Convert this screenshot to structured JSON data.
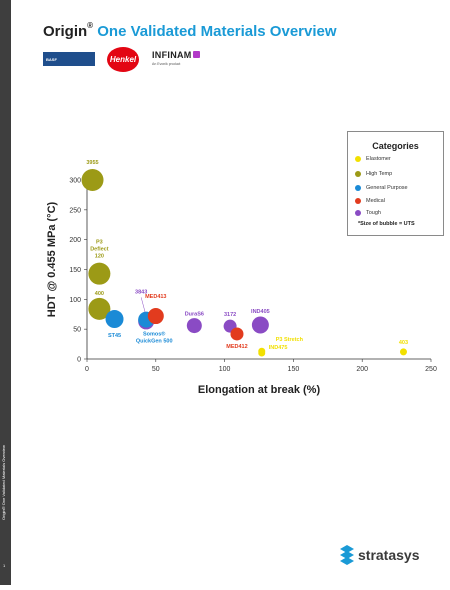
{
  "sidebar": {
    "label": "Origin® One Validated Materials Overview",
    "page_number": "1"
  },
  "header": {
    "title_brand": "Origin",
    "title_reg": "®",
    "title_rest": " One Validated Materials Overview",
    "title_brand_color": "#222222",
    "title_accent_color": "#1a9ad6"
  },
  "partners": {
    "basf_label": "BASF",
    "henkel_label": "Henkel",
    "infinam_label": "INFINAM",
    "infinam_sub": "An Evonik product"
  },
  "footer": {
    "logo_text": "stratasys"
  },
  "legend": {
    "title": "Categories",
    "items": [
      {
        "label": "Elastomer",
        "color": "#f2e000"
      },
      {
        "label": "High Temp",
        "color": "#9c9a16"
      },
      {
        "label": "General Purpose",
        "color": "#1a8ad6"
      },
      {
        "label": "Medical",
        "color": "#e23b1e"
      },
      {
        "label": "Tough",
        "color": "#8a4bc4"
      }
    ],
    "note": "*Size of bubble = UTS"
  },
  "chart_data": {
    "type": "scatter",
    "xlabel": "Elongation at break (%)",
    "ylabel": "HDT @ 0.455 MPa (°C)",
    "xlim": [
      0,
      250
    ],
    "ylim": [
      0,
      300
    ],
    "xticks": [
      "0",
      "50",
      "100",
      "150",
      "200",
      "250"
    ],
    "yticks": [
      "0",
      "50",
      "100",
      "150",
      "200",
      "250",
      "300"
    ],
    "grid": false,
    "legend_position": "top-right",
    "size_encodes": "UTS",
    "points": [
      {
        "label": "3955",
        "x": 4,
        "y": 300,
        "size": 11,
        "category": "High Temp"
      },
      {
        "label": "P3 Deflect 120",
        "x": 9,
        "y": 143,
        "size": 11,
        "category": "High Temp"
      },
      {
        "label": "400",
        "x": 9,
        "y": 84,
        "size": 11,
        "category": "High Temp"
      },
      {
        "label": "ST45",
        "x": 20,
        "y": 67,
        "size": 9,
        "category": "General Purpose"
      },
      {
        "label": "3843",
        "x": 43,
        "y": 63,
        "size": 8,
        "category": "Tough"
      },
      {
        "label": "Somos® QuickGen 500",
        "x": 43,
        "y": 66,
        "size": 8,
        "category": "General Purpose"
      },
      {
        "label": "MED413",
        "x": 50,
        "y": 72,
        "size": 8,
        "category": "Medical"
      },
      {
        "label": "DuraS6",
        "x": 78,
        "y": 56,
        "size": 7.5,
        "category": "Tough"
      },
      {
        "label": "3172",
        "x": 104,
        "y": 55,
        "size": 6.5,
        "category": "Tough"
      },
      {
        "label": "MED412",
        "x": 109,
        "y": 42,
        "size": 6.5,
        "category": "Medical"
      },
      {
        "label": "IND405",
        "x": 126,
        "y": 57,
        "size": 8.5,
        "category": "Tough"
      },
      {
        "label": "P3 Stretch",
        "x": 127,
        "y": 13,
        "size": 3.5,
        "category": "Elastomer"
      },
      {
        "label": "IND475",
        "x": 127,
        "y": 10,
        "size": 3.5,
        "category": "Elastomer"
      },
      {
        "label": "403",
        "x": 230,
        "y": 12,
        "size": 3.5,
        "category": "Elastomer"
      }
    ]
  }
}
